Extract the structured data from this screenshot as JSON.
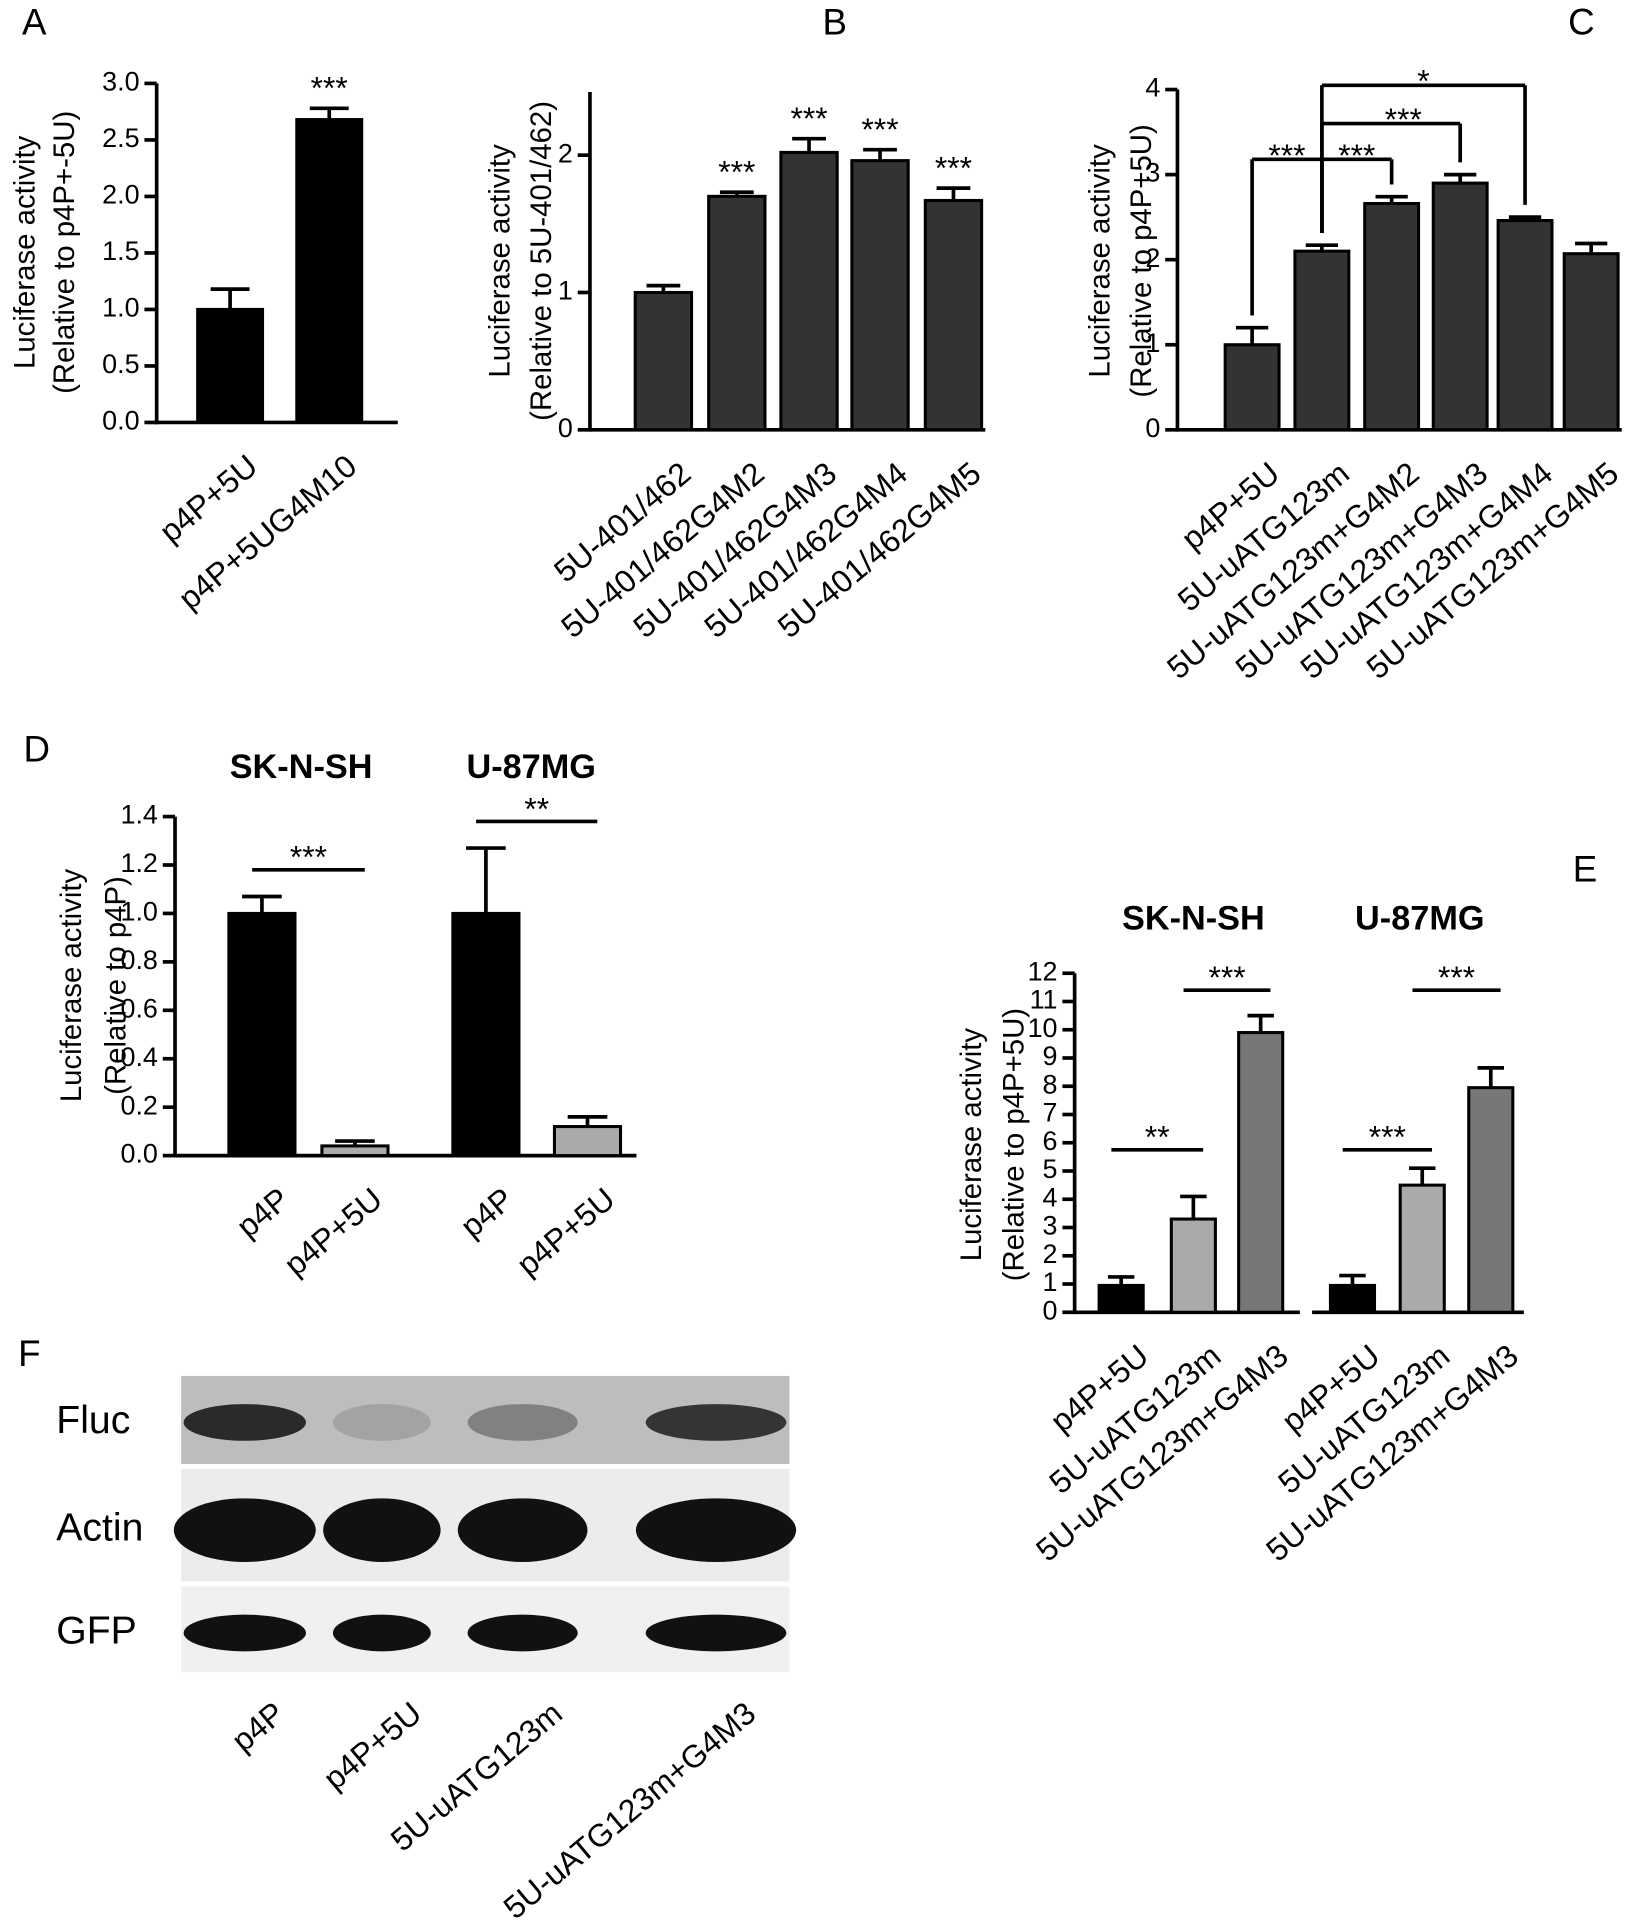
{
  "chart_data": [
    {
      "type": "bar",
      "panel": "A",
      "ylabel": [
        "Luciferase activity",
        "(Relative to p4P+-5U)"
      ],
      "categories": [
        "p4P+5U",
        "p4P+5UG4M10"
      ],
      "values": [
        1.0,
        2.68
      ],
      "errors": [
        0.18,
        0.1
      ],
      "colors": [
        "#000000",
        "#000000"
      ],
      "ylim": [
        0,
        3
      ],
      "yticks": [
        {
          "value": 0,
          "label": "0.0"
        },
        0.5,
        {
          "value": 1,
          "label": "1.0"
        },
        1.5,
        {
          "value": 2,
          "label": "2.0"
        },
        2.5,
        {
          "value": 3,
          "label": "3.0"
        }
      ],
      "annotations": [
        "***"
      ]
    },
    {
      "type": "bar",
      "panel": "B",
      "ylabel": [
        "Luciferase activity",
        "(Relative to 5U-401/462)"
      ],
      "categories": [
        "5U-401/462",
        "5U-401/462G4M2",
        "5U-401/462G4M3",
        "5U-401/462G4M4",
        "5U-401/462G4M5"
      ],
      "values": [
        1.0,
        1.7,
        2.02,
        1.96,
        1.67
      ],
      "errors": [
        0.05,
        0.03,
        0.1,
        0.08,
        0.09
      ],
      "colors": [
        "#333333",
        "#333333",
        "#333333",
        "#333333",
        "#333333"
      ],
      "ylim": [
        0,
        2.46
      ],
      "yticks": [
        0,
        1,
        2
      ],
      "annotations": [
        "***",
        "***",
        "***",
        "***"
      ]
    },
    {
      "type": "bar",
      "panel": "C",
      "ylabel": [
        "Luciferase activity",
        "(Relative to p4P+5U)"
      ],
      "categories": [
        "p4P+5U",
        "5U-uATG123m",
        "5U-uATG123m+G4M2",
        "5U-uATG123m+G4M3",
        "5U-uATG123m+G4M4",
        "5U-uATG123m+G4M5"
      ],
      "values": [
        1.0,
        2.1,
        2.66,
        2.9,
        2.46,
        2.07
      ],
      "errors": [
        0.2,
        0.07,
        0.08,
        0.1,
        0.04,
        0.12
      ],
      "colors": [
        "#333333",
        "#333333",
        "#333333",
        "#333333",
        "#333333",
        "#333333"
      ],
      "ylim": [
        0,
        4
      ],
      "yticks": [
        0,
        1,
        2,
        3,
        4
      ],
      "annotations": [
        "***",
        "***",
        "***",
        "*"
      ]
    },
    {
      "type": "bar",
      "panel": "D",
      "ylabel": [
        "Luciferase activity",
        "(Relative to p4P)"
      ],
      "groups": [
        "SK-N-SH",
        "U-87MG"
      ],
      "categories": [
        "p4P",
        "p4P+5U",
        "p4P",
        "p4P+5U"
      ],
      "values": [
        1.0,
        0.04,
        1.0,
        0.12
      ],
      "errors": [
        0.07,
        0.02,
        0.27,
        0.04
      ],
      "colors": [
        "#000000",
        "#aaaaaa",
        "#000000",
        "#aaaaaa"
      ],
      "ylim": [
        0,
        1.4
      ],
      "yticks": [
        {
          "value": 0,
          "label": "0.0"
        },
        0.2,
        0.4,
        0.6,
        0.8,
        {
          "value": 1,
          "label": "1.0"
        },
        1.2,
        1.4
      ],
      "annotations": [
        "***",
        "**"
      ]
    },
    {
      "type": "bar",
      "panel": "E",
      "ylabel": [
        "Luciferase activity",
        "(Relative to p4P+5U)"
      ],
      "groups": [
        "SK-N-SH",
        "U-87MG"
      ],
      "categories": [
        "p4P+5U",
        "5U-uATG123m",
        "5U-uATG123m+G4M3",
        "p4P+5U",
        "5U-uATG123m",
        "5U-uATG123m+G4M3"
      ],
      "values": [
        0.95,
        3.3,
        9.9,
        0.95,
        4.5,
        7.95
      ],
      "errors": [
        0.3,
        0.8,
        0.6,
        0.35,
        0.6,
        0.7
      ],
      "colors": [
        "#000000",
        "#aaaaaa",
        "#777777",
        "#000000",
        "#aaaaaa",
        "#777777"
      ],
      "ylim": [
        0,
        12
      ],
      "yticks": [
        0,
        1,
        2,
        3,
        4,
        5,
        6,
        7,
        8,
        9,
        10,
        11,
        12
      ],
      "annotations": [
        "**",
        "***",
        "***",
        "***"
      ]
    }
  ],
  "blot": {
    "panel": "F",
    "rows": [
      "Fluc",
      "Actin",
      "GFP"
    ],
    "lanes": [
      "p4P",
      "p4P+5U",
      "5U-uATG123m",
      "5U-uATG123m+G4M3"
    ]
  }
}
